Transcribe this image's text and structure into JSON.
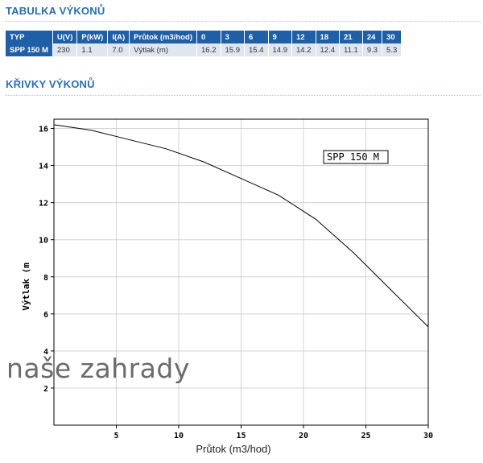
{
  "sections": {
    "table_title": "TABULKA VÝKONŮ",
    "curves_title": "KŘIVKY VÝKONŮ"
  },
  "table": {
    "headers": [
      "TYP",
      "U(V)",
      "P(kW)",
      "I(A)",
      "Průtok (m3/hod)",
      "0",
      "3",
      "6",
      "9",
      "12",
      "18",
      "21",
      "24",
      "30"
    ],
    "row": {
      "model": "SPP 150 M",
      "voltage": "230",
      "power": "1.1",
      "current": "7.0",
      "label": "Výtlak (m)",
      "values": [
        "16.2",
        "15.9",
        "15.4",
        "14.9",
        "14.2",
        "12.4",
        "11.1",
        "9.3",
        "5.3"
      ]
    }
  },
  "watermark": "naše zahrady",
  "colors": {
    "accent": "#2a6db8",
    "table_header": "#1f5fa8",
    "table_cell": "#dfe6ee",
    "grid": "#d3d3d3",
    "curve": "#000000"
  },
  "chart_data": {
    "type": "line",
    "title": "",
    "xlabel": "Průtok (m3/hod)",
    "ylabel": "Výtlak (m",
    "xlim": [
      0,
      30
    ],
    "ylim": [
      0,
      16.5
    ],
    "xticks": [
      5,
      10,
      15,
      20,
      25,
      30
    ],
    "yticks": [
      2,
      4,
      6,
      8,
      10,
      12,
      14,
      16
    ],
    "grid": true,
    "legend": "SPP 150 M",
    "legend_position": "top-right",
    "series": [
      {
        "name": "SPP 150 M",
        "x": [
          0,
          3,
          6,
          9,
          12,
          15,
          18,
          21,
          24,
          27,
          30
        ],
        "y": [
          16.2,
          15.9,
          15.4,
          14.9,
          14.2,
          13.3,
          12.4,
          11.1,
          9.3,
          7.3,
          5.3
        ]
      }
    ]
  }
}
